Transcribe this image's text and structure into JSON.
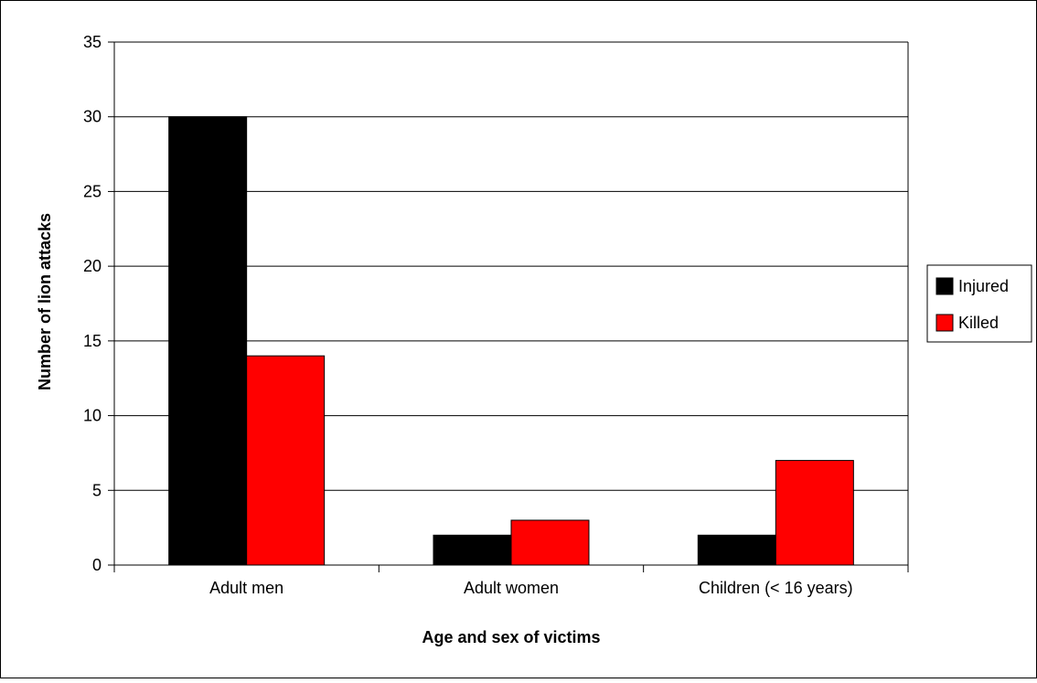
{
  "chart_data": {
    "type": "bar",
    "title": "",
    "xlabel": "Age and sex of victims",
    "ylabel": "Number of lion attacks",
    "categories": [
      "Adult men",
      "Adult women",
      "Children (< 16 years)"
    ],
    "series": [
      {
        "name": "Injured",
        "values": [
          30,
          2,
          2
        ],
        "color": "#000000"
      },
      {
        "name": "Killed",
        "values": [
          14,
          3,
          7
        ],
        "color": "#ff0000"
      }
    ],
    "ylim": [
      0,
      35
    ],
    "yticks": [
      "0",
      "5",
      "10",
      "15",
      "20",
      "25",
      "30",
      "35"
    ],
    "grid": true,
    "legend_position": "right"
  }
}
